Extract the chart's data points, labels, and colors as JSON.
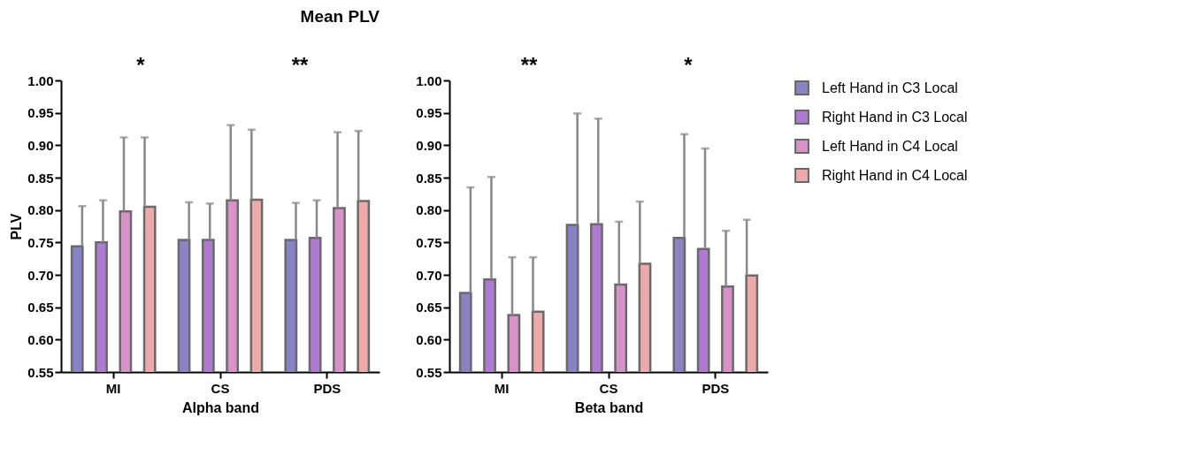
{
  "chart_data": [
    {
      "type": "bar",
      "title": "Mean PLV",
      "xlabel": "Alpha band",
      "ylabel": "PLV",
      "categories": [
        "MI",
        "CS",
        "PDS"
      ],
      "ylim": [
        0.55,
        1.0
      ],
      "yticks": [
        0.55,
        {
          "value": 0.6,
          "label": "0.60"
        },
        0.65,
        {
          "value": 0.7,
          "label": "0.70"
        },
        0.75,
        {
          "value": 0.8,
          "label": "0.80"
        },
        0.85,
        {
          "value": 0.9,
          "label": "0.90"
        },
        0.95,
        {
          "value": 1.0,
          "label": "1.00"
        }
      ],
      "grid": false,
      "legend": "right",
      "series": [
        {
          "name": "Left Hand in C3 Local",
          "color": "#8783c4",
          "values": [
            0.744,
            0.754,
            0.754
          ],
          "errors": [
            [
              0.744,
              0.806
            ],
            [
              0.754,
              0.812
            ],
            [
              0.754,
              0.811
            ]
          ]
        },
        {
          "name": "Right Hand in C3 Local",
          "color": "#b07ad2",
          "values": [
            0.75,
            0.754,
            0.757
          ],
          "errors": [
            [
              0.75,
              0.815
            ],
            [
              0.754,
              0.81
            ],
            [
              0.757,
              0.815
            ]
          ]
        },
        {
          "name": "Left Hand in C4 Local",
          "color": "#d892c8",
          "values": [
            0.798,
            0.815,
            0.803
          ],
          "errors": [
            [
              0.798,
              0.912
            ],
            [
              0.815,
              0.931
            ],
            [
              0.803,
              0.92
            ]
          ]
        },
        {
          "name": "Right Hand in C4 Local",
          "color": "#eeaaaa",
          "values": [
            0.805,
            0.816,
            0.814
          ],
          "errors": [
            [
              0.805,
              0.912
            ],
            [
              0.816,
              0.924
            ],
            [
              0.814,
              0.922
            ]
          ]
        }
      ],
      "annotations": [
        "*",
        "**"
      ]
    },
    {
      "type": "bar",
      "xlabel": "Beta band",
      "categories": [
        "MI",
        "CS",
        "PDS"
      ],
      "ylim": [
        0.55,
        1.0
      ],
      "yticks": [
        0.55,
        {
          "value": 0.6,
          "label": "0.60"
        },
        0.65,
        {
          "value": 0.7,
          "label": "0.70"
        },
        0.75,
        {
          "value": 0.8,
          "label": "0.80"
        },
        0.85,
        {
          "value": 0.9,
          "label": "0.90"
        },
        0.95,
        {
          "value": 1.0,
          "label": "1.00"
        }
      ],
      "grid": false,
      "legend": "right",
      "series": [
        {
          "name": "Left Hand in C3 Local",
          "color": "#8783c4",
          "values": [
            0.672,
            0.777,
            0.757
          ],
          "errors": [
            [
              0.672,
              0.835
            ],
            [
              0.777,
              0.949
            ],
            [
              0.757,
              0.917
            ]
          ]
        },
        {
          "name": "Right Hand in C3 Local",
          "color": "#b07ad2",
          "values": [
            0.693,
            0.778,
            0.74
          ],
          "errors": [
            [
              0.693,
              0.851
            ],
            [
              0.778,
              0.941
            ],
            [
              0.74,
              0.895
            ]
          ]
        },
        {
          "name": "Left Hand in C4 Local",
          "color": "#d892c8",
          "values": [
            0.638,
            0.685,
            0.682
          ],
          "errors": [
            [
              0.638,
              0.727
            ],
            [
              0.685,
              0.782
            ],
            [
              0.682,
              0.768
            ]
          ]
        },
        {
          "name": "Right Hand in C4 Local",
          "color": "#eeaaaa",
          "values": [
            0.643,
            0.717,
            0.699
          ],
          "errors": [
            [
              0.643,
              0.727
            ],
            [
              0.717,
              0.813
            ],
            [
              0.699,
              0.785
            ]
          ]
        }
      ],
      "annotations": [
        "**",
        "*"
      ]
    }
  ]
}
